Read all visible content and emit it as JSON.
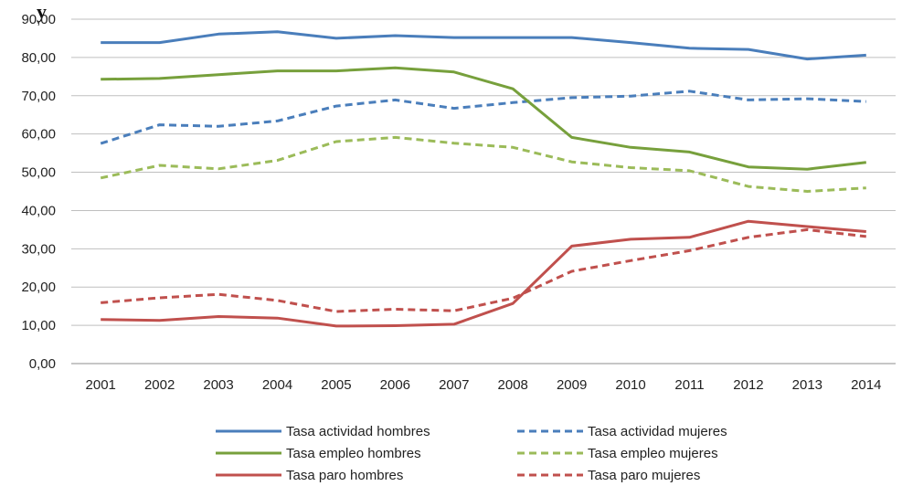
{
  "chart_data": {
    "type": "line",
    "title_fragment": "y",
    "categories": [
      "2001",
      "2002",
      "2003",
      "2004",
      "2005",
      "2006",
      "2007",
      "2008",
      "2009",
      "2010",
      "2011",
      "2012",
      "2013",
      "2014"
    ],
    "y_ticks": [
      "0,00",
      "10,00",
      "20,00",
      "30,00",
      "40,00",
      "50,00",
      "60,00",
      "70,00",
      "80,00",
      "90,00"
    ],
    "ylim": [
      0,
      90
    ],
    "grid": true,
    "legend_position": "bottom",
    "series": [
      {
        "name": "Tasa actividad hombres",
        "color": "#4a7ebb",
        "dashed": false,
        "values": [
          83.9,
          83.9,
          86.1,
          86.7,
          85.0,
          85.7,
          85.2,
          85.2,
          85.2,
          83.9,
          82.4,
          82.1,
          79.6,
          80.6
        ]
      },
      {
        "name": "Tasa actividad mujeres",
        "color": "#4a7ebb",
        "dashed": true,
        "values": [
          57.5,
          62.4,
          62.0,
          63.4,
          67.3,
          68.9,
          66.7,
          68.2,
          69.5,
          69.9,
          71.2,
          68.9,
          69.2,
          68.5
        ]
      },
      {
        "name": "Tasa empleo hombres",
        "color": "#77a03c",
        "dashed": false,
        "values": [
          74.3,
          74.5,
          75.5,
          76.5,
          76.5,
          77.3,
          76.2,
          71.8,
          59.1,
          56.5,
          55.3,
          51.4,
          50.8,
          52.6
        ]
      },
      {
        "name": "Tasa empleo mujeres",
        "color": "#9bbb59",
        "dashed": true,
        "values": [
          48.5,
          51.8,
          50.9,
          53.1,
          58.0,
          59.1,
          57.6,
          56.5,
          52.7,
          51.2,
          50.4,
          46.3,
          45.0,
          45.9
        ]
      },
      {
        "name": "Tasa paro hombres",
        "color": "#c0504d",
        "dashed": false,
        "values": [
          11.5,
          11.3,
          12.3,
          11.9,
          9.8,
          9.9,
          10.3,
          15.7,
          30.7,
          32.5,
          33.0,
          37.2,
          35.8,
          34.5
        ]
      },
      {
        "name": "Tasa paro mujeres",
        "color": "#c0504d",
        "dashed": true,
        "values": [
          15.9,
          17.2,
          18.1,
          16.5,
          13.6,
          14.2,
          13.8,
          17.1,
          24.1,
          26.9,
          29.5,
          33.0,
          35.0,
          33.2
        ]
      }
    ]
  }
}
